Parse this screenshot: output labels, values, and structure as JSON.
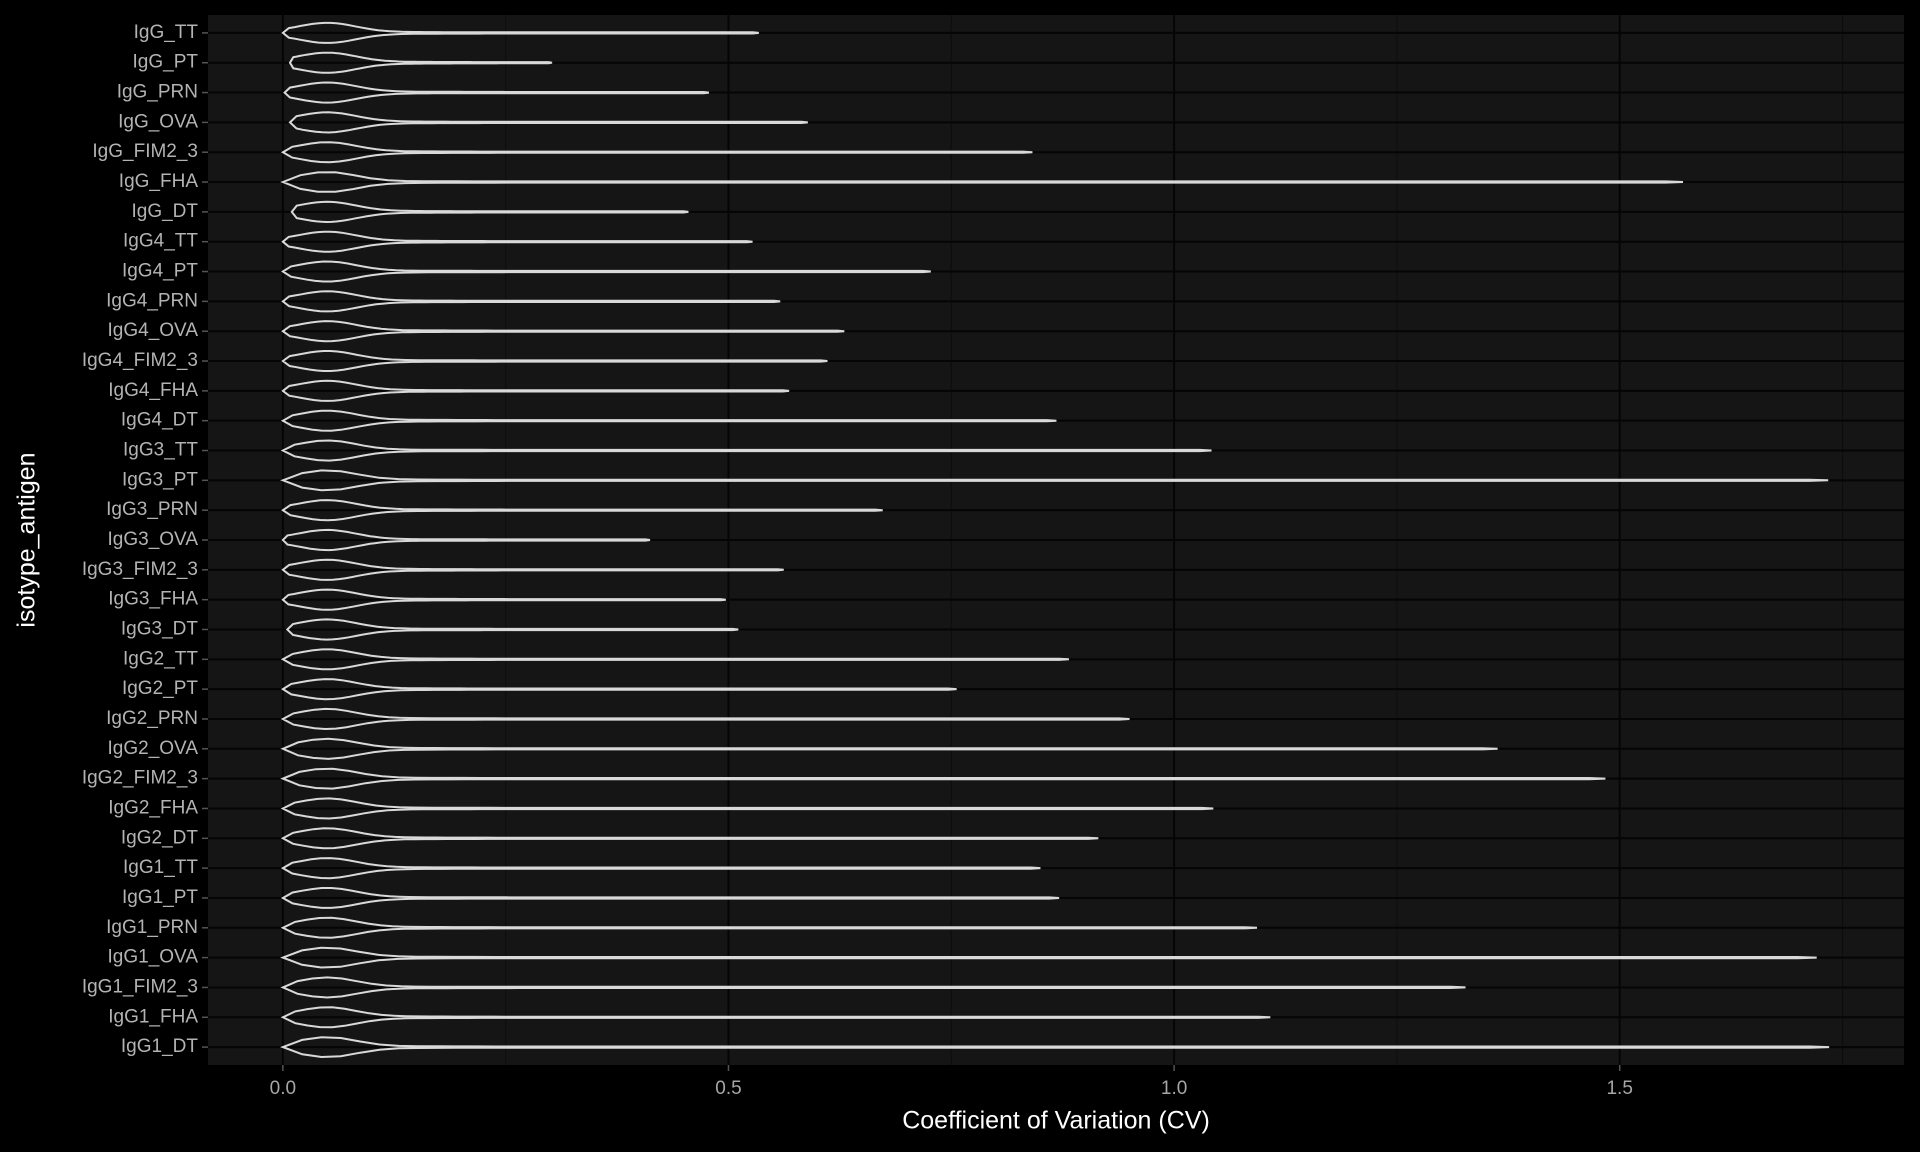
{
  "chart_data": {
    "type": "violin",
    "xlabel": "Coefficient of Variation (CV)",
    "ylabel": "isotype_antigen",
    "categories": [
      "IgG_TT",
      "IgG_PT",
      "IgG_PRN",
      "IgG_OVA",
      "IgG_FIM2_3",
      "IgG_FHA",
      "IgG_DT",
      "IgG4_TT",
      "IgG4_PT",
      "IgG4_PRN",
      "IgG4_OVA",
      "IgG4_FIM2_3",
      "IgG4_FHA",
      "IgG4_DT",
      "IgG3_TT",
      "IgG3_PT",
      "IgG3_PRN",
      "IgG3_OVA",
      "IgG3_FIM2_3",
      "IgG3_FHA",
      "IgG3_DT",
      "IgG2_TT",
      "IgG2_PT",
      "IgG2_PRN",
      "IgG2_OVA",
      "IgG2_FIM2_3",
      "IgG2_FHA",
      "IgG2_DT",
      "IgG1_TT",
      "IgG1_PT",
      "IgG1_PRN",
      "IgG1_OVA",
      "IgG1_FIM2_3",
      "IgG1_FHA",
      "IgG1_DT"
    ],
    "mins": [
      0,
      0.008,
      0.002,
      0.008,
      0,
      0,
      0.01,
      0,
      0,
      0,
      0,
      0,
      0,
      0,
      0,
      0,
      0,
      0,
      0,
      0,
      0.005,
      0,
      0,
      0,
      0,
      0,
      0,
      0,
      0,
      0,
      0,
      0,
      0,
      0,
      0
    ],
    "maxs": [
      0.534,
      0.302,
      0.478,
      0.589,
      0.841,
      1.571,
      0.455,
      0.527,
      0.727,
      0.558,
      0.63,
      0.611,
      0.568,
      0.868,
      1.042,
      1.734,
      0.673,
      0.412,
      0.562,
      0.497,
      0.511,
      0.882,
      0.756,
      0.95,
      1.363,
      1.484,
      1.044,
      0.915,
      0.85,
      0.871,
      1.093,
      1.721,
      1.327,
      1.108,
      1.735
    ],
    "xlim": [
      -0.084,
      1.819
    ],
    "xticks": [
      {
        "value": 0,
        "label": "0.0"
      },
      0.5,
      {
        "value": 1,
        "label": "1.0"
      },
      1.5
    ],
    "color": "#d9d9d9",
    "grid": true
  }
}
